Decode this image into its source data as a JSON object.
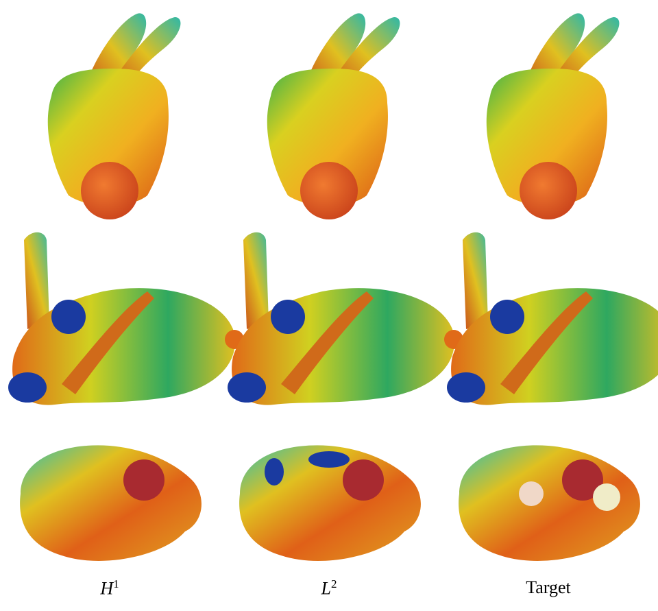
{
  "figure": {
    "columns": [
      {
        "label": {
          "base": "H",
          "sup": "1"
        }
      },
      {
        "label": {
          "base": "L",
          "sup": "2"
        }
      },
      {
        "label": {
          "base": "Target"
        }
      }
    ]
  }
}
